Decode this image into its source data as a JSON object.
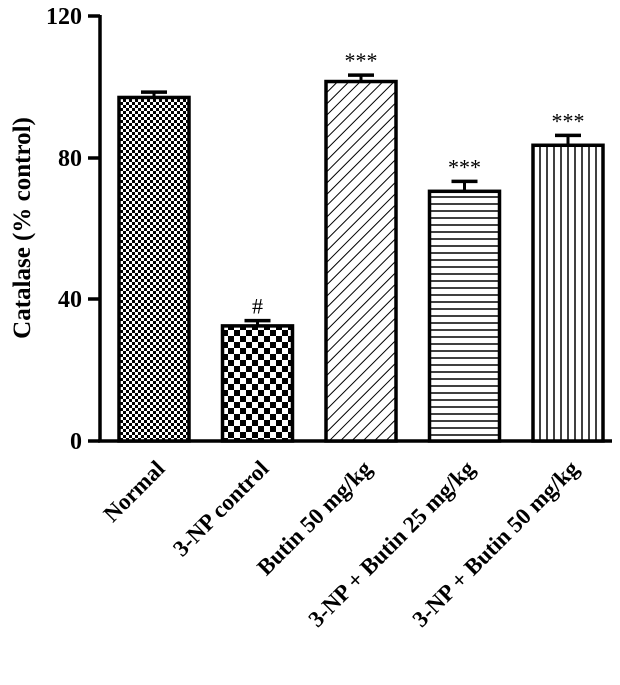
{
  "chart_data": {
    "type": "bar",
    "ylabel": "Catalase (% control)",
    "xlabel": "",
    "ylim": [
      0,
      120
    ],
    "yticks": [
      "0",
      "40",
      "80",
      "120"
    ],
    "grid": false,
    "categories": [
      "Normal",
      "3-NP control",
      "Butin 50 mg/kg",
      "3-NP + Butin 25 mg/kg",
      "3-NP + Butin 50 mg/kg"
    ],
    "values": [
      97,
      32.5,
      101.5,
      70.5,
      83.5
    ],
    "errors": [
      1.5,
      1.5,
      1.8,
      2.8,
      2.8
    ],
    "annotations": [
      "",
      "#",
      "***",
      "***",
      "***"
    ],
    "patterns": [
      "fine-checker",
      "coarse-checker",
      "diagonal-lines",
      "horizontal-lines",
      "vertical-lines"
    ]
  }
}
